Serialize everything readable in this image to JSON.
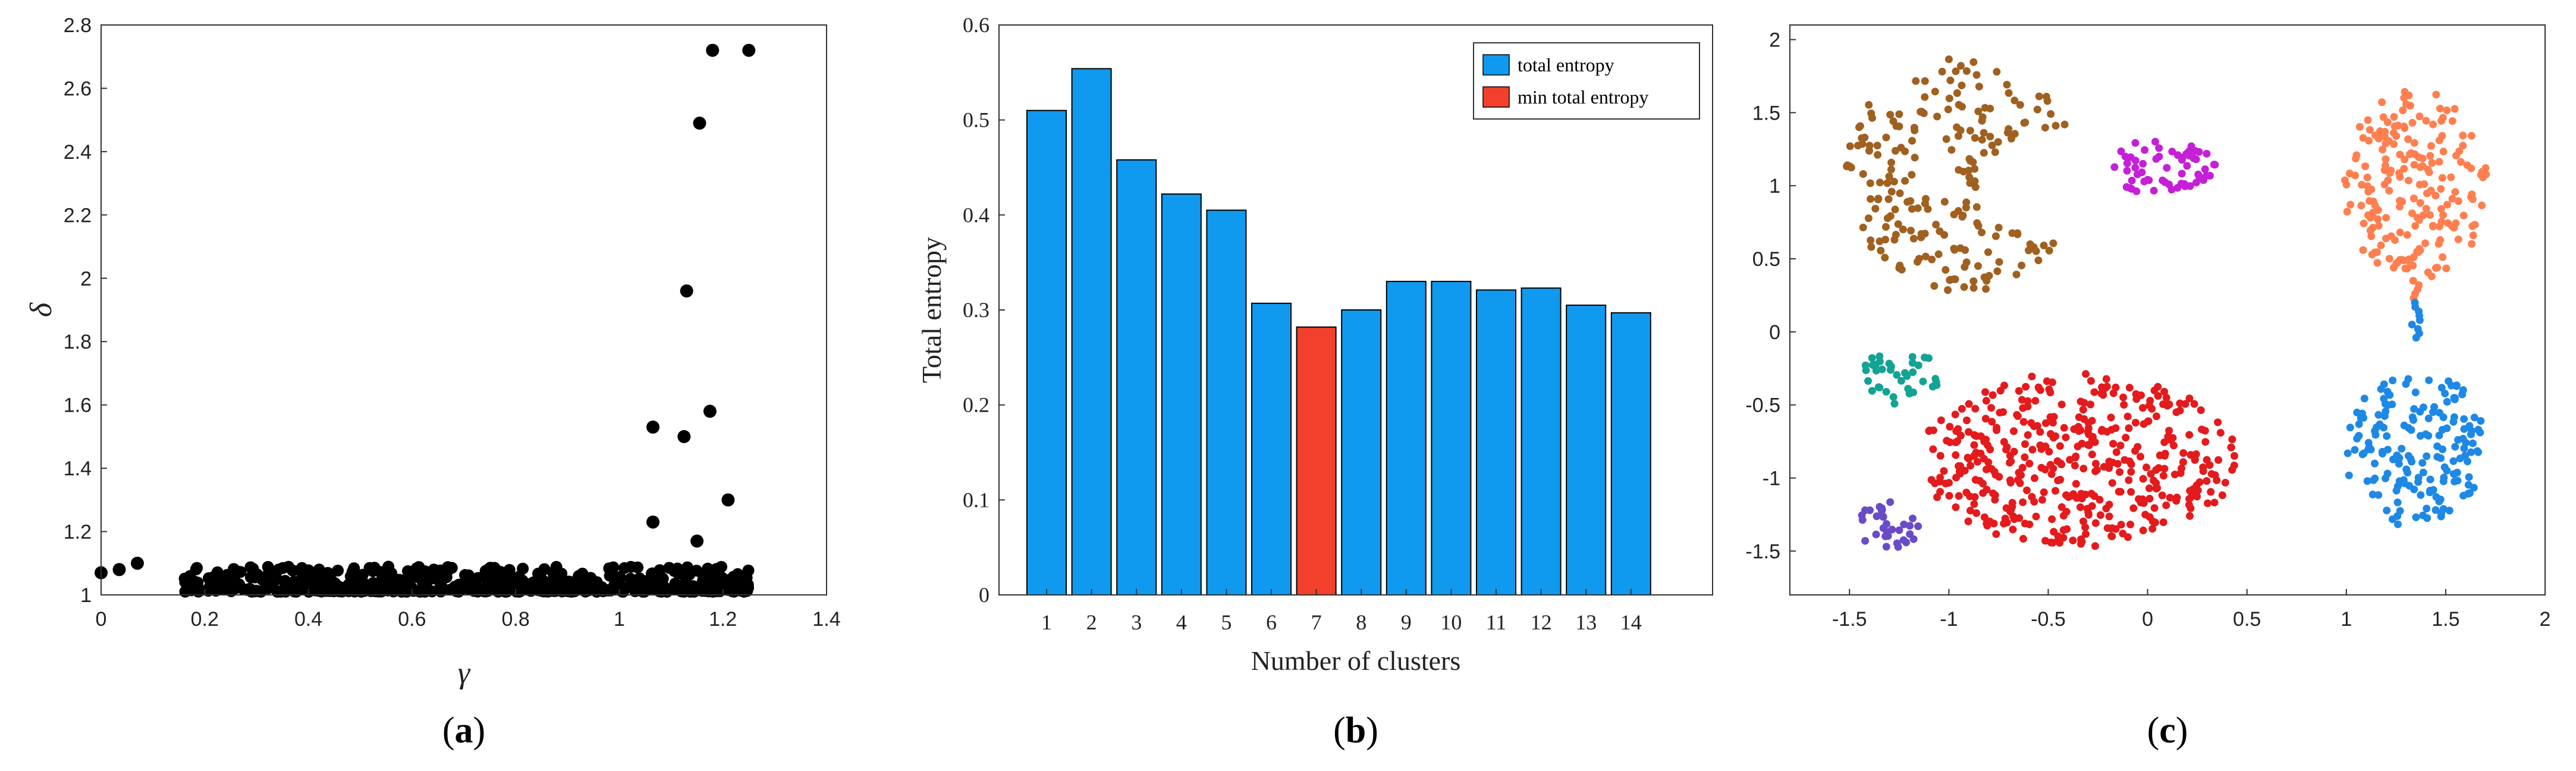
{
  "chart_data": [
    {
      "type": "scatter",
      "panel_label": {
        "open": "(",
        "letter": "a",
        "close": ")"
      },
      "xlabel": "γ",
      "ylabel": "δ",
      "xlim": [
        0,
        1.4
      ],
      "ylim": [
        1,
        2.8
      ],
      "xticks": [
        "0",
        "0.2",
        "0.4",
        "0.6",
        "0.8",
        "1",
        "1.2",
        "1.4"
      ],
      "yticks": [
        "1",
        "1.2",
        "1.4",
        "1.6",
        "1.8",
        "2",
        "2.2",
        "2.4",
        "2.6",
        "2.8"
      ],
      "color": "#000000",
      "highlight_points": [
        {
          "x": 0.0,
          "y": 1.07
        },
        {
          "x": 0.035,
          "y": 1.08
        },
        {
          "x": 0.07,
          "y": 1.1
        },
        {
          "x": 1.18,
          "y": 2.72
        },
        {
          "x": 1.25,
          "y": 2.72
        },
        {
          "x": 1.155,
          "y": 2.49
        },
        {
          "x": 1.13,
          "y": 1.96
        },
        {
          "x": 1.065,
          "y": 1.53
        },
        {
          "x": 1.125,
          "y": 1.5
        },
        {
          "x": 1.175,
          "y": 1.58
        },
        {
          "x": 1.21,
          "y": 1.3
        },
        {
          "x": 1.065,
          "y": 1.23
        },
        {
          "x": 1.15,
          "y": 1.17
        }
      ],
      "dense_band": {
        "x_range": [
          0.16,
          1.25
        ],
        "y_range": [
          1.0,
          1.08
        ],
        "count": 520
      }
    },
    {
      "type": "bar",
      "panel_label": {
        "open": "(",
        "letter": "b",
        "close": ")"
      },
      "xlabel": "Number of clusters",
      "ylabel": "Total entropy",
      "ylim": [
        0,
        0.6
      ],
      "yticks": [
        "0",
        "0.1",
        "0.2",
        "0.3",
        "0.4",
        "0.5",
        "0.6"
      ],
      "categories": [
        "1",
        "2",
        "3",
        "4",
        "5",
        "6",
        "7",
        "8",
        "9",
        "10",
        "11",
        "12",
        "13",
        "14"
      ],
      "values": [
        0.51,
        0.554,
        0.458,
        0.422,
        0.405,
        0.307,
        0.282,
        0.3,
        0.33,
        0.33,
        0.321,
        0.323,
        0.305,
        0.297
      ],
      "highlight_index": 6,
      "colors": {
        "bar": "#0f9af0",
        "highlight": "#f2402c",
        "edge": "#000000"
      },
      "legend": [
        {
          "label": "total entropy",
          "color": "#0f9af0"
        },
        {
          "label": "min total entropy",
          "color": "#f2402c"
        }
      ],
      "legend_position": "top-right"
    },
    {
      "type": "scatter",
      "panel_label": {
        "open": "(",
        "letter": "c",
        "close": ")"
      },
      "xlim": [
        -1.8,
        2.0
      ],
      "ylim": [
        -1.8,
        2.1
      ],
      "xticks": [
        "-1.5",
        "-1",
        "-0.5",
        "0",
        "0.5",
        "1",
        "1.5",
        "2"
      ],
      "yticks": [
        "-1.5",
        "-1",
        "-0.5",
        "0",
        "0.5",
        "1",
        "1.5",
        "2"
      ],
      "clusters": [
        {
          "name": "brown crescent",
          "color": "#a0601f",
          "shape": "crescent",
          "center": [
            -0.95,
            1.07
          ],
          "radius": [
            0.6,
            0.8
          ],
          "bite": [
            -0.45,
            1.0,
            0.38
          ],
          "count": 210
        },
        {
          "name": "magenta blob",
          "color": "#c51fd8",
          "shape": "ellipse",
          "center": [
            0.08,
            1.13
          ],
          "radius": [
            0.26,
            0.21
          ],
          "count": 60
        },
        {
          "name": "orange drop",
          "color": "#ff7f50",
          "shape": "ellipse",
          "center": [
            1.35,
            1.0
          ],
          "radius": [
            0.36,
            0.66
          ],
          "count": 200
        },
        {
          "name": "teal blob",
          "color": "#13a394",
          "shape": "ellipse",
          "center": [
            -1.24,
            -0.3
          ],
          "radius": [
            0.2,
            0.2
          ],
          "count": 38
        },
        {
          "name": "red oval",
          "color": "#e41a1c",
          "shape": "ellipse",
          "center": [
            -0.35,
            -0.87
          ],
          "radius": [
            0.8,
            0.6
          ],
          "count": 430
        },
        {
          "name": "blue drop",
          "color": "#1e88e5",
          "shape": "ellipse",
          "center": [
            1.35,
            -0.8
          ],
          "radius": [
            0.36,
            0.54
          ],
          "count": 170
        },
        {
          "name": "purple blob",
          "color": "#6a4bc7",
          "shape": "ellipse",
          "center": [
            -1.3,
            -1.33
          ],
          "radius": [
            0.17,
            0.17
          ],
          "count": 32
        }
      ]
    }
  ]
}
